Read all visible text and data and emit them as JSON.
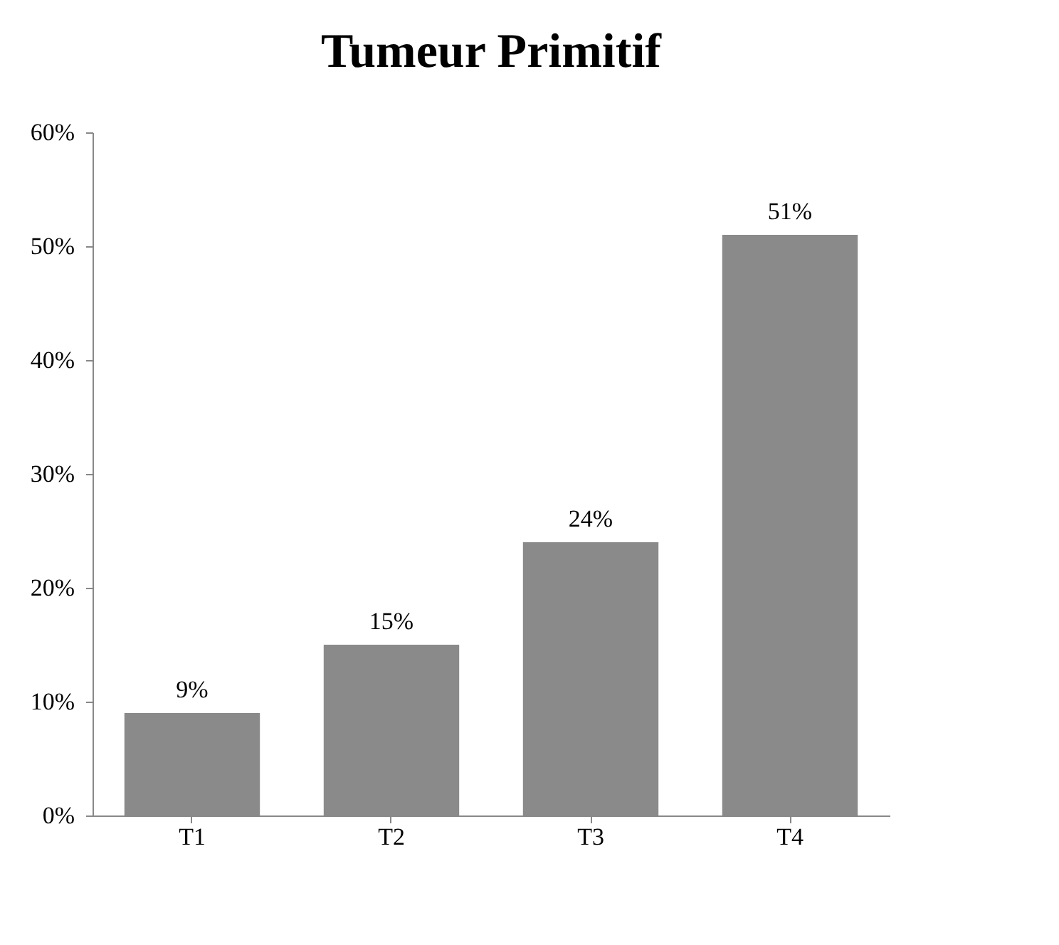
{
  "chart_data": {
    "type": "bar",
    "title": "Tumeur Primitif",
    "categories": [
      "T1",
      "T2",
      "T3",
      "T4"
    ],
    "values": [
      9,
      15,
      24,
      51
    ],
    "value_labels": [
      "9%",
      "15%",
      "24%",
      "51%"
    ],
    "color": "#8a8a8a",
    "ylim": [
      0,
      60
    ],
    "yticks": [
      {
        "value": 0,
        "label": "0%"
      },
      {
        "value": 10,
        "label": "10%"
      },
      {
        "value": 20,
        "label": "20%"
      },
      {
        "value": 30,
        "label": "30%"
      },
      {
        "value": 40,
        "label": "40%"
      },
      {
        "value": 50,
        "label": "50%"
      },
      {
        "value": 60,
        "label": "60%"
      }
    ],
    "grid": false
  }
}
